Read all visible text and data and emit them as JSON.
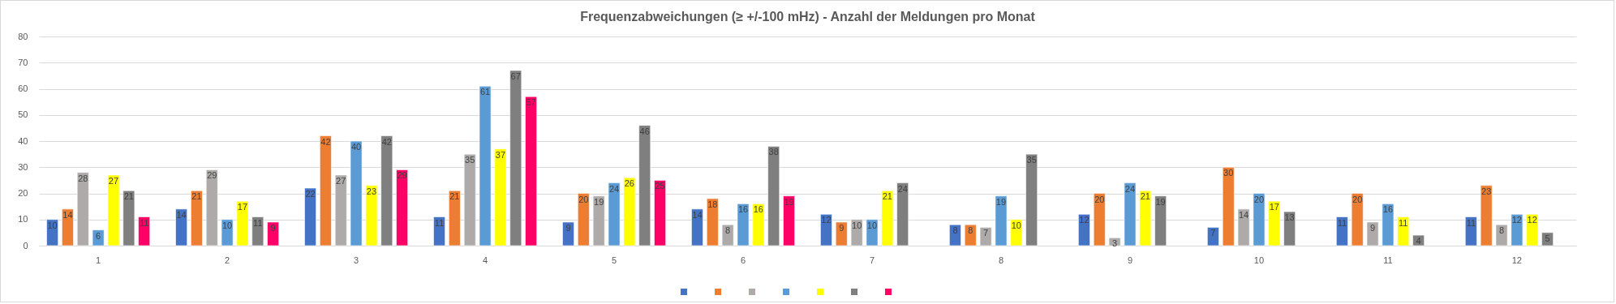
{
  "chart_data": {
    "type": "bar",
    "title": "Frequenzabweichungen (≥ +/-100 mHz) - Anzahl der Meldungen pro Monat",
    "categories": [
      "1",
      "2",
      "3",
      "4",
      "5",
      "6",
      "7",
      "8",
      "9",
      "10",
      "11",
      "12"
    ],
    "series": [
      {
        "color": "#4472c4",
        "values": [
          10,
          14,
          22,
          11,
          9,
          14,
          12,
          8,
          12,
          7,
          11,
          11
        ]
      },
      {
        "color": "#ed7d31",
        "values": [
          14,
          21,
          42,
          21,
          20,
          18,
          9,
          8,
          20,
          30,
          20,
          23
        ]
      },
      {
        "color": "#aeaaaa",
        "values": [
          28,
          29,
          27,
          35,
          19,
          8,
          10,
          7,
          3,
          14,
          9,
          8
        ]
      },
      {
        "color": "#5b9bd5",
        "values": [
          6,
          10,
          40,
          61,
          24,
          16,
          10,
          19,
          24,
          20,
          16,
          12
        ]
      },
      {
        "color": "#ffff00",
        "values": [
          27,
          17,
          23,
          37,
          26,
          16,
          21,
          10,
          21,
          17,
          11,
          12
        ]
      },
      {
        "color": "#7f7f7f",
        "values": [
          21,
          11,
          42,
          67,
          46,
          38,
          24,
          35,
          19,
          13,
          4,
          5
        ]
      },
      {
        "color": "#ff0066",
        "values": [
          11,
          9,
          29,
          57,
          25,
          19,
          null,
          null,
          null,
          null,
          null,
          null
        ]
      }
    ],
    "ylim": [
      0,
      80
    ],
    "yticks": [
      0,
      10,
      20,
      30,
      40,
      50,
      60,
      70,
      80
    ],
    "grid": "y",
    "data_labels": true
  }
}
